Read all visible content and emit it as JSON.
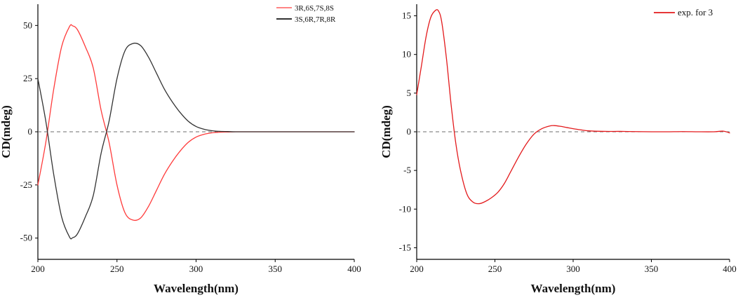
{
  "chart_data": [
    {
      "type": "line",
      "xlabel": "Wavelength(nm)",
      "ylabel": "CD(mdeg)",
      "xlim": [
        200,
        400
      ],
      "ylim": [
        -60,
        60
      ],
      "xticks": [
        200,
        250,
        300,
        350,
        400
      ],
      "yticks": [
        50,
        25,
        0,
        -25,
        -50
      ],
      "zero_line": "dashed",
      "legend": "top-right",
      "series": [
        {
          "name": "3R,6S,7S,8S",
          "color": "#ff3b3b",
          "x": [
            200,
            205,
            210,
            215,
            220,
            222,
            225,
            230,
            235,
            240,
            245,
            250,
            255,
            260,
            265,
            270,
            275,
            280,
            285,
            290,
            295,
            300,
            305,
            310,
            315,
            320,
            325,
            330,
            340,
            350,
            360,
            370,
            380,
            390,
            400
          ],
          "y": [
            -25,
            -5,
            20,
            40,
            49.5,
            49.8,
            48,
            40,
            30,
            10,
            -5,
            -25,
            -38,
            -41.5,
            -40.5,
            -35,
            -27.5,
            -20,
            -14,
            -9,
            -5,
            -2.5,
            -1.2,
            -0.5,
            -0.2,
            -0.1,
            0,
            0,
            0,
            0,
            0,
            0,
            0,
            0,
            0
          ]
        },
        {
          "name": "3S,6R,7R,8R",
          "color": "#333333",
          "x": [
            200,
            205,
            210,
            215,
            220,
            222,
            225,
            230,
            235,
            240,
            245,
            250,
            255,
            260,
            265,
            270,
            275,
            280,
            285,
            290,
            295,
            300,
            305,
            310,
            315,
            320,
            325,
            330,
            340,
            350,
            360,
            370,
            380,
            390,
            400
          ],
          "y": [
            25,
            5,
            -20,
            -40,
            -49.5,
            -49.8,
            -48,
            -40,
            -30,
            -10,
            5,
            25,
            38,
            41.5,
            40.5,
            35,
            27.5,
            20,
            14,
            9,
            5,
            2.5,
            1.2,
            0.5,
            0.2,
            0.1,
            0,
            0,
            0,
            0,
            0,
            0,
            0,
            0,
            0
          ]
        }
      ]
    },
    {
      "type": "line",
      "xlabel": "Wavelength(nm)",
      "ylabel": "CD(mdeg)",
      "xlim": [
        200,
        400
      ],
      "ylim": [
        -16.5,
        16.5
      ],
      "xticks": [
        200,
        250,
        300,
        350,
        400
      ],
      "yticks": [
        15,
        10,
        5,
        0,
        -5,
        -10,
        -15
      ],
      "zero_line": "dashed",
      "legend": "top-right",
      "series": [
        {
          "name": "exp. for 3",
          "color": "#e31a1c",
          "x": [
            200,
            203,
            206,
            209,
            212,
            214,
            216,
            219,
            222,
            225,
            228,
            232,
            236,
            240,
            244,
            248,
            252,
            256,
            260,
            265,
            270,
            275,
            280,
            285,
            288,
            292,
            296,
            300,
            305,
            310,
            320,
            330,
            340,
            350,
            360,
            370,
            380,
            390,
            396,
            400
          ],
          "y": [
            4.8,
            8.5,
            12.3,
            14.8,
            15.7,
            15.6,
            14.2,
            9.5,
            3.5,
            -1.5,
            -5.0,
            -8.0,
            -9.1,
            -9.3,
            -9.0,
            -8.5,
            -7.8,
            -6.7,
            -5.2,
            -3.3,
            -1.6,
            -0.3,
            0.4,
            0.75,
            0.8,
            0.7,
            0.55,
            0.4,
            0.25,
            0.12,
            0.05,
            0.05,
            0.02,
            0.0,
            0.0,
            0.02,
            0.0,
            0.0,
            0.08,
            -0.15
          ]
        }
      ]
    }
  ]
}
